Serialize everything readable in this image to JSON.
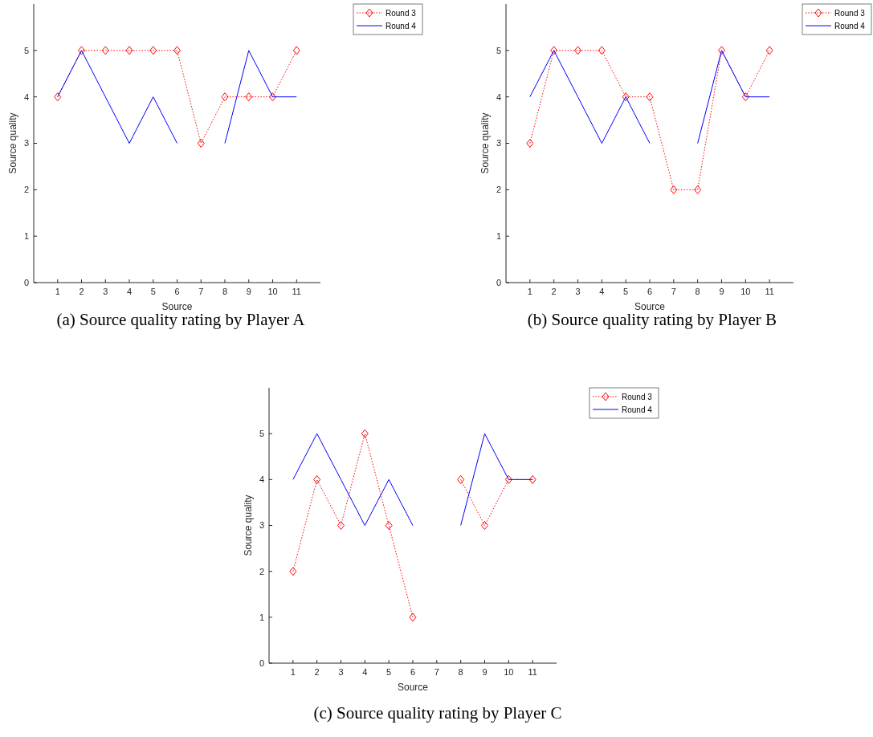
{
  "chart_data": [
    {
      "type": "line",
      "title": "(a) Source quality rating by Player A",
      "xlabel": "Source",
      "ylabel": "Source quality",
      "x": [
        1,
        2,
        3,
        4,
        5,
        6,
        7,
        8,
        9,
        10,
        11
      ],
      "xlim": [
        0,
        12
      ],
      "xticks": [
        1,
        2,
        3,
        4,
        5,
        6,
        7,
        8,
        9,
        10,
        11
      ],
      "ylim": [
        0,
        6
      ],
      "yticks": [
        0,
        1,
        2,
        3,
        4,
        5
      ],
      "legend": "top right",
      "series": [
        {
          "name": "Round 3",
          "color": "#ff0000",
          "marker": "diamond",
          "line_style": "dotted",
          "values": [
            4,
            5,
            5,
            5,
            5,
            5,
            3,
            4,
            4,
            4,
            5
          ]
        },
        {
          "name": "Round 4",
          "color": "#0000ff",
          "marker": "none",
          "line_style": "solid",
          "values": [
            4,
            5,
            4,
            3,
            4,
            3,
            null,
            3,
            5,
            4,
            4
          ]
        }
      ]
    },
    {
      "type": "line",
      "title": "(b) Source quality rating by Player B",
      "xlabel": "Source",
      "ylabel": "Source quality",
      "x": [
        1,
        2,
        3,
        4,
        5,
        6,
        7,
        8,
        9,
        10,
        11
      ],
      "xlim": [
        0,
        12
      ],
      "xticks": [
        1,
        2,
        3,
        4,
        5,
        6,
        7,
        8,
        9,
        10,
        11
      ],
      "ylim": [
        0,
        6
      ],
      "yticks": [
        0,
        1,
        2,
        3,
        4,
        5
      ],
      "legend": "top right",
      "series": [
        {
          "name": "Round 3",
          "color": "#ff0000",
          "marker": "diamond",
          "line_style": "dotted",
          "values": [
            3,
            5,
            5,
            5,
            4,
            4,
            2,
            2,
            5,
            4,
            5
          ]
        },
        {
          "name": "Round 4",
          "color": "#0000ff",
          "marker": "none",
          "line_style": "solid",
          "values": [
            4,
            5,
            4,
            3,
            4,
            3,
            null,
            3,
            5,
            4,
            4
          ]
        }
      ]
    },
    {
      "type": "line",
      "title": "(c) Source quality rating by Player C",
      "xlabel": "Source",
      "ylabel": "Source quality",
      "x": [
        1,
        2,
        3,
        4,
        5,
        6,
        7,
        8,
        9,
        10,
        11
      ],
      "xlim": [
        0,
        12
      ],
      "xticks": [
        1,
        2,
        3,
        4,
        5,
        6,
        7,
        8,
        9,
        10,
        11
      ],
      "ylim": [
        0,
        6
      ],
      "yticks": [
        0,
        1,
        2,
        3,
        4,
        5
      ],
      "legend": "top right",
      "series": [
        {
          "name": "Round 3",
          "color": "#ff0000",
          "marker": "diamond",
          "line_style": "dotted",
          "values": [
            2,
            4,
            3,
            5,
            3,
            1,
            null,
            4,
            3,
            4,
            4
          ]
        },
        {
          "name": "Round 4",
          "color": "#0000ff",
          "marker": "none",
          "line_style": "solid",
          "values": [
            4,
            5,
            4,
            3,
            4,
            3,
            null,
            3,
            5,
            4,
            4
          ]
        }
      ]
    }
  ]
}
